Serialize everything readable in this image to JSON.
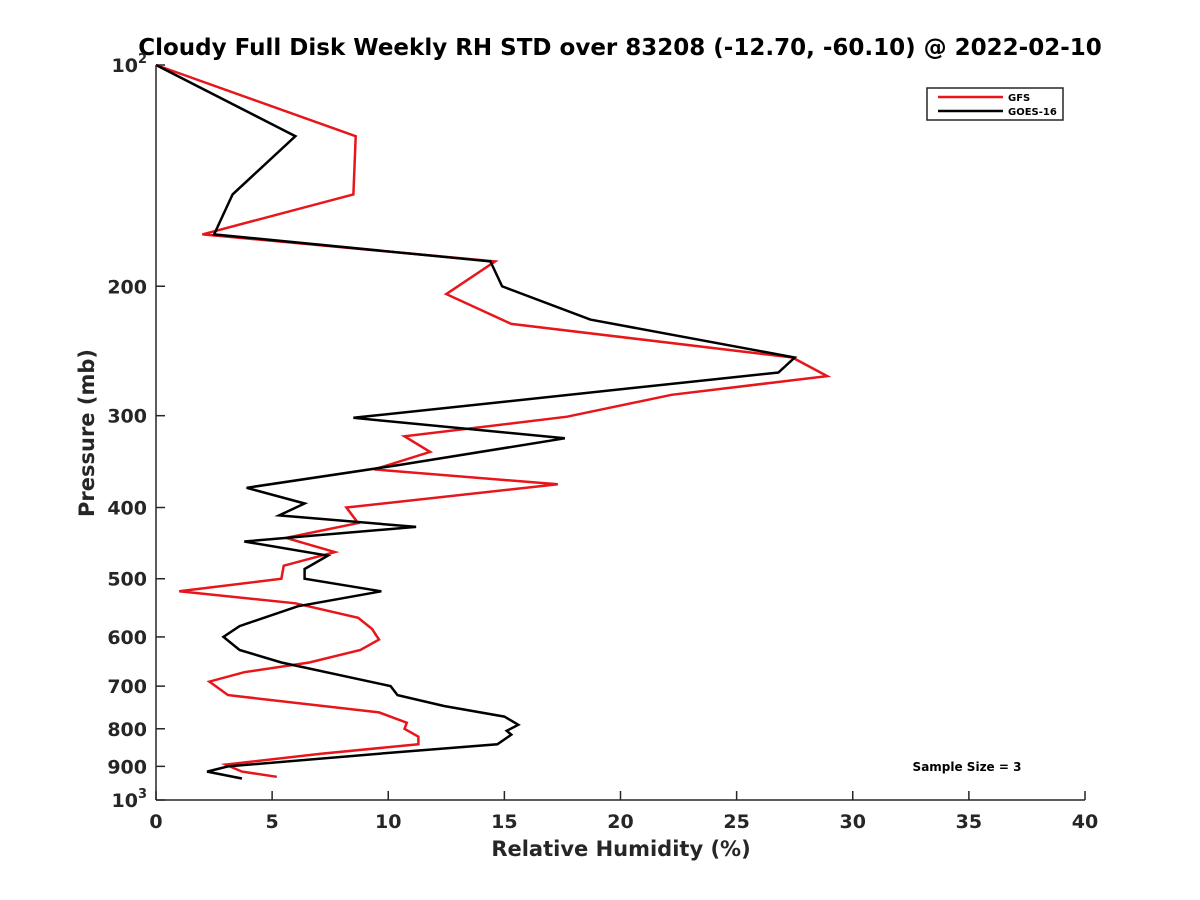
{
  "chart_data": {
    "type": "line",
    "title": "Cloudy Full Disk Weekly RH STD over 83208 (-12.70, -60.10) @ 2022-02-10",
    "xlabel": "Relative Humidity (%)",
    "ylabel": "Pressure (mb)",
    "xlim": [
      0,
      40
    ],
    "ylim": [
      100,
      1000
    ],
    "yscale": "log",
    "y_reversed": true,
    "x_ticks": [
      0,
      5,
      10,
      15,
      20,
      25,
      30,
      35,
      40
    ],
    "x_tick_labels": [
      "0",
      "5",
      "10",
      "15",
      "20",
      "25",
      "30",
      "35",
      "40"
    ],
    "y_ticks": [
      100,
      200,
      300,
      400,
      500,
      600,
      700,
      800,
      900,
      1000
    ],
    "y_tick_labels": [
      {
        "base": "10",
        "exp": "2"
      },
      {
        "base": "200"
      },
      {
        "base": "300"
      },
      {
        "base": "400"
      },
      {
        "base": "500"
      },
      {
        "base": "600"
      },
      {
        "base": "700"
      },
      {
        "base": "800"
      },
      {
        "base": "900"
      },
      {
        "base": "10",
        "exp": "3"
      }
    ],
    "legend_position": "top-right",
    "annotation": "Sample Size = 3",
    "series": [
      {
        "name": "GFS",
        "color": "#e8161b",
        "points": [
          [
            0,
            100
          ],
          [
            8.6,
            125
          ],
          [
            8.5,
            150
          ],
          [
            2.0,
            170
          ],
          [
            14.6,
            185
          ],
          [
            12.5,
            205
          ],
          [
            15.3,
            225
          ],
          [
            27.4,
            250
          ],
          [
            28.9,
            265
          ],
          [
            22.2,
            281
          ],
          [
            17.7,
            301
          ],
          [
            10.7,
            320
          ],
          [
            11.8,
            336
          ],
          [
            9.4,
            355
          ],
          [
            17.3,
            372
          ],
          [
            8.2,
            400
          ],
          [
            8.7,
            420
          ],
          [
            5.6,
            440
          ],
          [
            7.7,
            460
          ],
          [
            5.5,
            480
          ],
          [
            5.4,
            500
          ],
          [
            1.0,
            520
          ],
          [
            6.0,
            540
          ],
          [
            8.7,
            565
          ],
          [
            9.3,
            585
          ],
          [
            9.6,
            605
          ],
          [
            8.8,
            625
          ],
          [
            6.6,
            650
          ],
          [
            3.8,
            670
          ],
          [
            2.3,
            690
          ],
          [
            3.1,
            720
          ],
          [
            9.6,
            760
          ],
          [
            10.8,
            785
          ],
          [
            10.7,
            800
          ],
          [
            11.3,
            820
          ],
          [
            11.3,
            840
          ],
          [
            7.1,
            865
          ],
          [
            3.0,
            895
          ],
          [
            3.7,
            915
          ],
          [
            5.2,
            930
          ]
        ]
      },
      {
        "name": "GOES-16",
        "color": "#000000",
        "points": [
          [
            0,
            100
          ],
          [
            6.0,
            125
          ],
          [
            3.3,
            150
          ],
          [
            2.5,
            170
          ],
          [
            14.4,
            185
          ],
          [
            14.9,
            200
          ],
          [
            18.7,
            222
          ],
          [
            27.5,
            250
          ],
          [
            26.8,
            262
          ],
          [
            8.5,
            302
          ],
          [
            17.6,
            322
          ],
          [
            10.5,
            350
          ],
          [
            3.9,
            376
          ],
          [
            6.4,
            395
          ],
          [
            5.3,
            410
          ],
          [
            11.2,
            425
          ],
          [
            3.8,
            445
          ],
          [
            7.4,
            465
          ],
          [
            6.4,
            485
          ],
          [
            6.4,
            500
          ],
          [
            9.7,
            520
          ],
          [
            6.1,
            545
          ],
          [
            3.6,
            580
          ],
          [
            2.9,
            600
          ],
          [
            3.6,
            625
          ],
          [
            5.4,
            650
          ],
          [
            10.1,
            700
          ],
          [
            10.4,
            720
          ],
          [
            12.4,
            745
          ],
          [
            15.0,
            770
          ],
          [
            15.6,
            790
          ],
          [
            15.1,
            805
          ],
          [
            15.3,
            815
          ],
          [
            14.7,
            840
          ],
          [
            9.6,
            865
          ],
          [
            3.1,
            900
          ],
          [
            2.2,
            915
          ],
          [
            3.7,
            935
          ]
        ]
      }
    ]
  }
}
